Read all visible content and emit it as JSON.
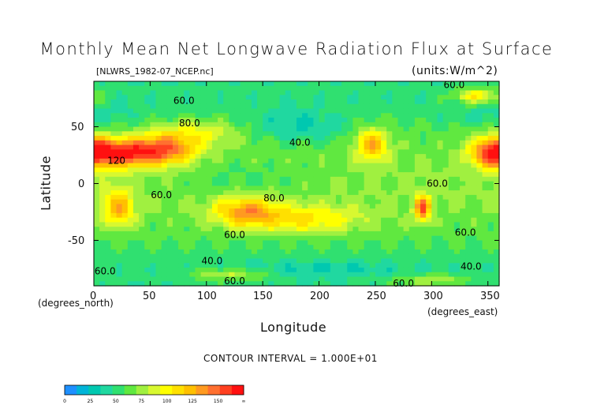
{
  "chart_data": {
    "type": "heatmap",
    "title": "Monthly Mean Net Longwave Radiation Flux at Surface",
    "subtitle_left": "[NLWRS_1982-07_NCEP.nc]",
    "subtitle_right": "(units:W/m^2)",
    "xlabel": "Longitude",
    "ylabel": "Latitude",
    "x_units": "(degrees_east)",
    "y_units": "(degrees_north)",
    "xlim": [
      0,
      360
    ],
    "ylim": [
      -90,
      90
    ],
    "x_ticks": [
      "0",
      "50",
      "100",
      "150",
      "200",
      "250",
      "300",
      "350"
    ],
    "x_tick_values": [
      0,
      50,
      100,
      150,
      200,
      250,
      300,
      350
    ],
    "y_ticks": [
      "50",
      "0",
      "-50"
    ],
    "y_tick_values": [
      50,
      0,
      -50
    ],
    "contour_interval": "CONTOUR INTERVAL = 1.000E+01",
    "contour_labels": [
      {
        "text": "60.0",
        "x": 80,
        "y": 73
      },
      {
        "text": "80.0",
        "x": 85,
        "y": 53
      },
      {
        "text": "40.0",
        "x": 183,
        "y": 36
      },
      {
        "text": "120",
        "x": 20,
        "y": 20
      },
      {
        "text": "60.0",
        "x": 60,
        "y": -10
      },
      {
        "text": "80.0",
        "x": 160,
        "y": -13
      },
      {
        "text": "60.0",
        "x": 305,
        "y": 0
      },
      {
        "text": "60.0",
        "x": 125,
        "y": -45
      },
      {
        "text": "60.0",
        "x": 330,
        "y": -43
      },
      {
        "text": "40.0",
        "x": 105,
        "y": -68
      },
      {
        "text": "40.0",
        "x": 335,
        "y": -73
      },
      {
        "text": "60.0",
        "x": 10,
        "y": -77
      },
      {
        "text": "60.0",
        "x": 125,
        "y": -86
      },
      {
        "text": "60.0",
        "x": 320,
        "y": 87
      },
      {
        "text": "60.0",
        "x": 275,
        "y": -88
      }
    ],
    "colorbar": {
      "levels": [
        "0",
        "25",
        "50",
        "75",
        "100",
        "125",
        "150",
        "∞"
      ],
      "colors": [
        "#1e90ff",
        "#00b4d8",
        "#00c8b0",
        "#20d8a0",
        "#30e070",
        "#60e840",
        "#a0f040",
        "#d8f830",
        "#ffff00",
        "#ffe000",
        "#ffc000",
        "#ff9a20",
        "#ff7030",
        "#ff4020",
        "#ff1010"
      ]
    }
  }
}
